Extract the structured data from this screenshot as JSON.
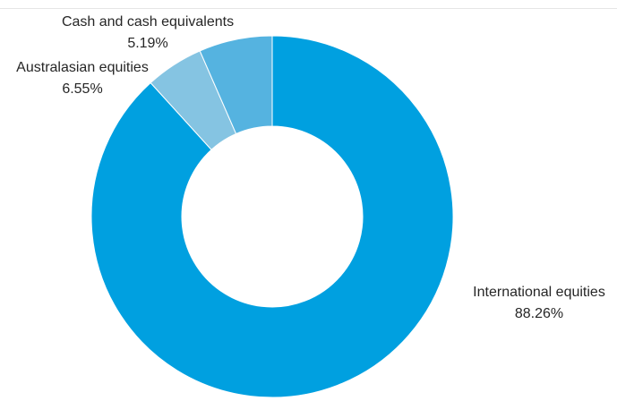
{
  "chart_data": {
    "type": "pie",
    "title": "",
    "donut": true,
    "slices": [
      {
        "label": "International equities",
        "value": 88.26,
        "value_label": "88.26%",
        "color": "#00a0e0"
      },
      {
        "label": "Cash and cash equivalents",
        "value": 5.19,
        "value_label": "5.19%",
        "color": "#85c4e2"
      },
      {
        "label": "Australasian equities",
        "value": 6.55,
        "value_label": "6.55%",
        "color": "#55b3e0"
      }
    ],
    "legend": "none"
  }
}
